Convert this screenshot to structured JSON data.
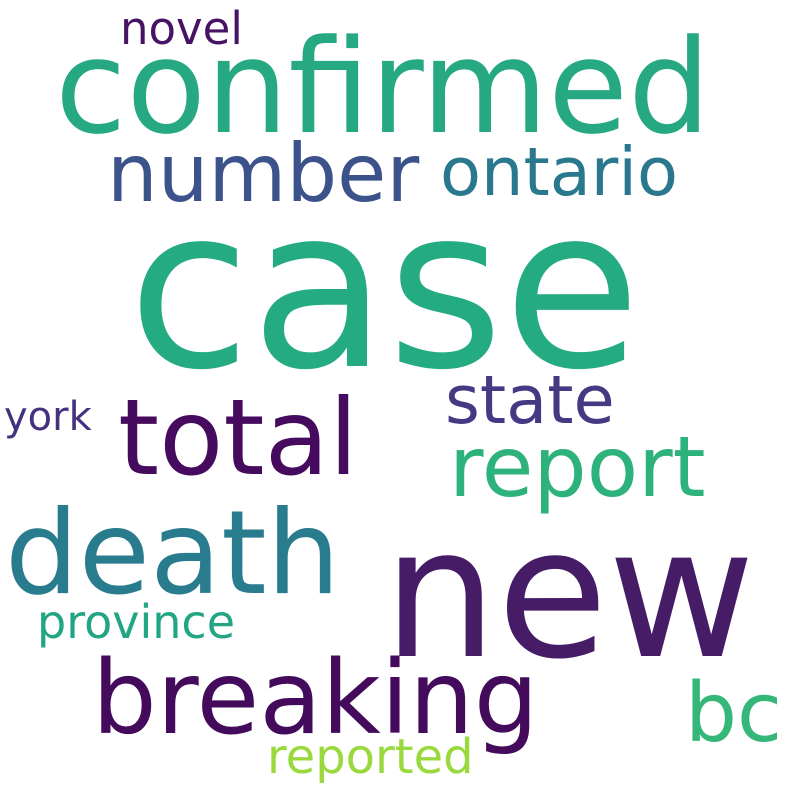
{
  "words": {
    "case": {
      "text": "case",
      "color": "#25AB82"
    },
    "new": {
      "text": "new",
      "color": "#471C67"
    },
    "confirmed": {
      "text": "confirmed",
      "color": "#26A982"
    },
    "total": {
      "text": "total",
      "color": "#460B5E"
    },
    "death": {
      "text": "death",
      "color": "#297B8E"
    },
    "breaking": {
      "text": "breaking",
      "color": "#440A5B"
    },
    "report": {
      "text": "report",
      "color": "#2EB27C"
    },
    "number": {
      "text": "number",
      "color": "#3B528B"
    },
    "ontario": {
      "text": "ontario",
      "color": "#2A788E"
    },
    "state": {
      "text": "state",
      "color": "#443A83"
    },
    "bc": {
      "text": "bc",
      "color": "#35B779"
    },
    "novel": {
      "text": "novel",
      "color": "#471365"
    },
    "province": {
      "text": "province",
      "color": "#22A584"
    },
    "reported": {
      "text": "reported",
      "color": "#9AD93D"
    },
    "york": {
      "text": "york",
      "color": "#45327F"
    }
  }
}
